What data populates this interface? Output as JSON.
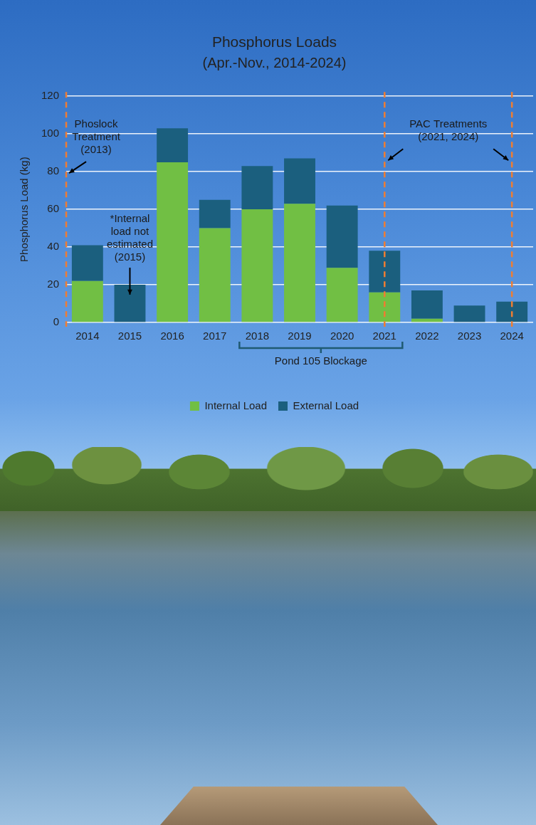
{
  "chart_data": {
    "type": "bar",
    "title": "Phosphorus Loads",
    "subtitle": "(Apr.-Nov., 2014-2024)",
    "y_label": "Phosphorus Load (kg)",
    "categories": [
      "2014",
      "2015",
      "2016",
      "2017",
      "2018",
      "2019",
      "2020",
      "2021",
      "2022",
      "2023",
      "2024"
    ],
    "series": [
      {
        "name": "Internal Load",
        "color": "#71bf44",
        "values": [
          22,
          null,
          85,
          50,
          60,
          63,
          29,
          16,
          2,
          0,
          0
        ]
      },
      {
        "name": "External Load",
        "color": "#1b5f7e",
        "values": [
          19,
          20,
          18,
          15,
          23,
          24,
          33,
          22,
          15,
          9,
          11
        ]
      }
    ],
    "stacked": true,
    "ylim": [
      0,
      120
    ],
    "yticks": [
      0,
      20,
      40,
      60,
      80,
      100,
      120
    ],
    "grid": true,
    "legend": "bottom",
    "treatments": [
      {
        "text": "Phoslock Treatment (2013)",
        "years": [
          "2013"
        ]
      },
      {
        "text": "PAC Treatments (2021, 2024)",
        "years": [
          "2021",
          "2024"
        ]
      }
    ],
    "notes": [
      {
        "text": "*Internal load not estimated (2015)",
        "category": "2015"
      }
    ],
    "bracket": {
      "text": "Pond 105 Blockage",
      "span": [
        "2018",
        "2021"
      ]
    }
  }
}
